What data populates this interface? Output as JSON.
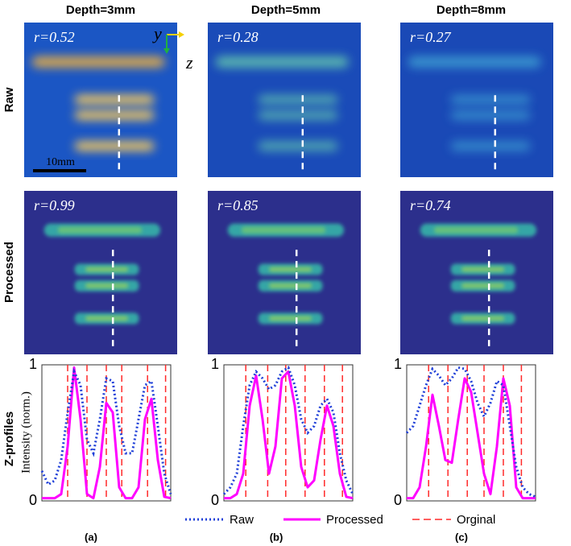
{
  "figure": {
    "column_titles": [
      "Depth=3mm",
      "Depth=5mm",
      "Depth=8mm"
    ],
    "row_labels": [
      "Raw",
      "Processed",
      "Z-profiles"
    ],
    "y_axis_label": "Intensity (norm.)",
    "axis_annotations": {
      "y": "y",
      "z": "z",
      "scale_bar": "10mm"
    },
    "legend": [
      {
        "name": "Raw",
        "color": "#1f3fd8"
      },
      {
        "name": "Processed",
        "color": "#ff00ff"
      },
      {
        "name": "Orginal",
        "color": "#ff2a2a"
      }
    ],
    "profile_x": [
      0,
      5,
      10,
      15,
      20,
      25,
      30,
      35,
      40,
      45,
      50,
      55,
      60,
      65,
      70,
      75,
      80,
      85,
      90,
      95,
      100
    ],
    "xlim": [
      0,
      100
    ],
    "ylim": [
      0,
      1
    ],
    "yticks": [
      0,
      1
    ],
    "panels": [
      {
        "label": "(a)",
        "raw_r": "r=0.52",
        "processed_r": "r=0.99",
        "raw": [
          0.22,
          0.12,
          0.15,
          0.3,
          0.65,
          0.95,
          0.85,
          0.45,
          0.35,
          0.6,
          0.9,
          0.88,
          0.55,
          0.35,
          0.35,
          0.6,
          0.85,
          0.88,
          0.55,
          0.2,
          0.05
        ],
        "processed": [
          0.02,
          0.02,
          0.02,
          0.05,
          0.4,
          0.98,
          0.6,
          0.05,
          0.02,
          0.25,
          0.72,
          0.65,
          0.1,
          0.02,
          0.02,
          0.1,
          0.6,
          0.75,
          0.3,
          0.03,
          0.02
        ],
        "original_edges": [
          20,
          35,
          50,
          62,
          82,
          96
        ]
      },
      {
        "label": "(b)",
        "raw_r": "r=0.28",
        "processed_r": "r=0.85",
        "raw": [
          0.05,
          0.1,
          0.2,
          0.55,
          0.85,
          0.95,
          0.9,
          0.82,
          0.85,
          0.95,
          0.98,
          0.85,
          0.6,
          0.5,
          0.55,
          0.7,
          0.75,
          0.65,
          0.35,
          0.15,
          0.05
        ],
        "processed": [
          0.02,
          0.02,
          0.05,
          0.2,
          0.7,
          0.92,
          0.6,
          0.2,
          0.4,
          0.9,
          0.95,
          0.7,
          0.25,
          0.1,
          0.15,
          0.45,
          0.7,
          0.55,
          0.2,
          0.03,
          0.02
        ],
        "original_edges": [
          17,
          34,
          48,
          63,
          78,
          92
        ]
      },
      {
        "label": "(c)",
        "raw_r": "r=0.27",
        "processed_r": "r=0.74",
        "raw": [
          0.5,
          0.55,
          0.7,
          0.85,
          0.97,
          0.92,
          0.85,
          0.9,
          0.98,
          0.97,
          0.88,
          0.72,
          0.62,
          0.72,
          0.88,
          0.85,
          0.55,
          0.25,
          0.1,
          0.05,
          0.03
        ],
        "processed": [
          0.02,
          0.02,
          0.1,
          0.4,
          0.78,
          0.55,
          0.3,
          0.28,
          0.6,
          0.9,
          0.8,
          0.5,
          0.2,
          0.05,
          0.4,
          0.9,
          0.7,
          0.1,
          0.02,
          0.02,
          0.02
        ],
        "original_edges": [
          17,
          32,
          47,
          60,
          75,
          89
        ]
      }
    ]
  }
}
